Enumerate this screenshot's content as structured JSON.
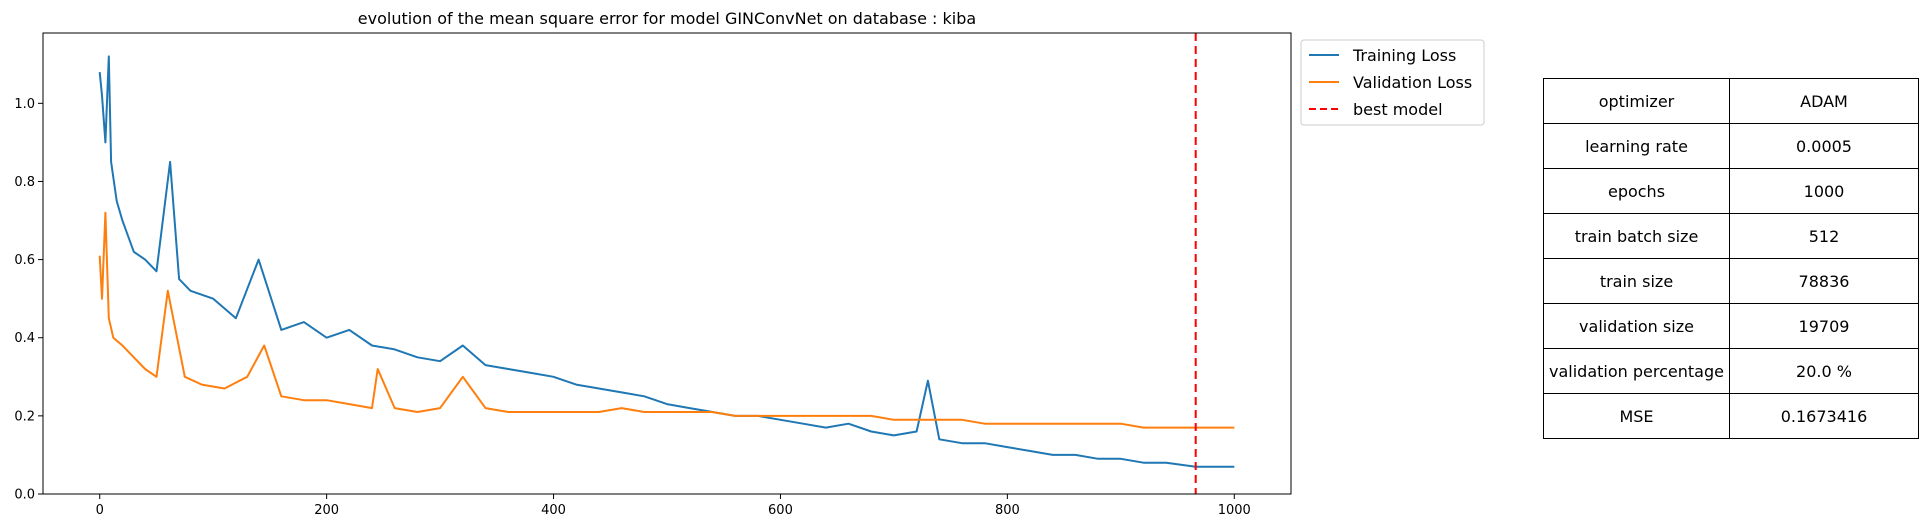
{
  "chart_data": {
    "type": "line",
    "title": "evolution of the mean square error for model GINConvNet on database : kiba",
    "xlabel": "",
    "ylabel": "",
    "xlim": [
      -50,
      1050
    ],
    "ylim": [
      0.0,
      1.18
    ],
    "x_ticks": [
      0,
      200,
      400,
      600,
      800,
      1000
    ],
    "y_ticks": [
      0.0,
      0.2,
      0.4,
      0.6,
      0.8,
      1.0
    ],
    "x_tick_labels": [
      "0",
      "200",
      "400",
      "600",
      "800",
      "1000"
    ],
    "y_tick_labels": [
      "0.0",
      "0.2",
      "0.4",
      "0.6",
      "0.8",
      "1.0"
    ],
    "legend_position": "outside-upper-right",
    "grid": false,
    "series": [
      {
        "name": "Training Loss",
        "color": "#1f77b4",
        "x": [
          0,
          2,
          5,
          8,
          10,
          15,
          20,
          30,
          40,
          50,
          62,
          70,
          80,
          100,
          120,
          140,
          160,
          180,
          200,
          220,
          240,
          260,
          280,
          300,
          320,
          340,
          360,
          380,
          400,
          420,
          440,
          460,
          480,
          500,
          520,
          540,
          560,
          580,
          600,
          620,
          640,
          660,
          680,
          700,
          720,
          730,
          740,
          760,
          780,
          800,
          820,
          840,
          860,
          880,
          900,
          920,
          940,
          966,
          980,
          1000
        ],
        "y": [
          1.08,
          1.02,
          0.9,
          1.12,
          0.85,
          0.75,
          0.7,
          0.62,
          0.6,
          0.57,
          0.85,
          0.55,
          0.52,
          0.5,
          0.45,
          0.6,
          0.42,
          0.44,
          0.4,
          0.42,
          0.38,
          0.37,
          0.35,
          0.34,
          0.38,
          0.33,
          0.32,
          0.31,
          0.3,
          0.28,
          0.27,
          0.26,
          0.25,
          0.23,
          0.22,
          0.21,
          0.2,
          0.2,
          0.19,
          0.18,
          0.17,
          0.18,
          0.16,
          0.15,
          0.16,
          0.29,
          0.14,
          0.13,
          0.13,
          0.12,
          0.11,
          0.1,
          0.1,
          0.09,
          0.09,
          0.08,
          0.08,
          0.07,
          0.07,
          0.07
        ]
      },
      {
        "name": "Validation Loss",
        "color": "#ff7f0e",
        "x": [
          0,
          2,
          5,
          8,
          12,
          20,
          30,
          40,
          50,
          60,
          75,
          90,
          110,
          130,
          145,
          160,
          180,
          200,
          220,
          240,
          245,
          260,
          280,
          300,
          320,
          340,
          360,
          380,
          400,
          420,
          440,
          460,
          480,
          500,
          520,
          540,
          560,
          580,
          600,
          620,
          640,
          660,
          680,
          700,
          720,
          740,
          760,
          780,
          800,
          820,
          840,
          860,
          880,
          900,
          920,
          940,
          966,
          980,
          1000
        ],
        "y": [
          0.61,
          0.5,
          0.72,
          0.45,
          0.4,
          0.38,
          0.35,
          0.32,
          0.3,
          0.52,
          0.3,
          0.28,
          0.27,
          0.3,
          0.38,
          0.25,
          0.24,
          0.24,
          0.23,
          0.22,
          0.32,
          0.22,
          0.21,
          0.22,
          0.3,
          0.22,
          0.21,
          0.21,
          0.21,
          0.21,
          0.21,
          0.22,
          0.21,
          0.21,
          0.21,
          0.21,
          0.2,
          0.2,
          0.2,
          0.2,
          0.2,
          0.2,
          0.2,
          0.19,
          0.19,
          0.19,
          0.19,
          0.18,
          0.18,
          0.18,
          0.18,
          0.18,
          0.18,
          0.18,
          0.17,
          0.17,
          0.17,
          0.17,
          0.17
        ]
      }
    ],
    "vlines": [
      {
        "name": "best model",
        "x": 966,
        "color": "#ff0000",
        "style": "dashed"
      }
    ]
  },
  "legend": {
    "items": [
      {
        "label": "Training Loss",
        "color": "#1f77b4",
        "style": "solid"
      },
      {
        "label": "Validation Loss",
        "color": "#ff7f0e",
        "style": "solid"
      },
      {
        "label": "best model",
        "color": "#ff0000",
        "style": "dashed"
      }
    ]
  },
  "params_table": {
    "rows": [
      {
        "key": "optimizer",
        "value": "ADAM"
      },
      {
        "key": "learning rate",
        "value": "0.0005"
      },
      {
        "key": "epochs",
        "value": "1000"
      },
      {
        "key": "train batch size",
        "value": "512"
      },
      {
        "key": "train size",
        "value": "78836"
      },
      {
        "key": "validation size",
        "value": "19709"
      },
      {
        "key": "validation percentage",
        "value": "20.0 %"
      },
      {
        "key": "MSE",
        "value": "0.1673416"
      }
    ]
  }
}
